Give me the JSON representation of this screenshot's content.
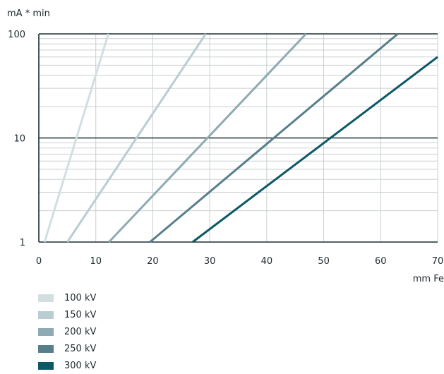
{
  "chart_data": {
    "type": "line",
    "title": "",
    "xlabel": "mm Fe",
    "ylabel": "mA * min",
    "xlim": [
      0,
      70
    ],
    "ylim": [
      1,
      100
    ],
    "y_scale": "log",
    "x_ticks": [
      0,
      10,
      20,
      30,
      40,
      50,
      60,
      70
    ],
    "y_ticks": [
      {
        "value": 1,
        "label": "1"
      },
      {
        "value": 10,
        "label": "10"
      },
      {
        "value": 100,
        "label": "100"
      }
    ],
    "grid": true,
    "legend_position": "bottom-left",
    "series": [
      {
        "name": "100 kV",
        "color": "#d3dee2",
        "x": [
          1,
          12.2
        ],
        "y": [
          1,
          100
        ]
      },
      {
        "name": "150 kV",
        "color": "#b9cdd3",
        "x": [
          5,
          29.3
        ],
        "y": [
          1,
          100
        ]
      },
      {
        "name": "200 kV",
        "color": "#8eaab2",
        "x": [
          12.3,
          46.9
        ],
        "y": [
          1,
          100
        ]
      },
      {
        "name": "250 kV",
        "color": "#567f8b",
        "x": [
          19.5,
          63
        ],
        "y": [
          1,
          100
        ]
      },
      {
        "name": "300 kV",
        "color": "#0c5864",
        "x": [
          27,
          70
        ],
        "y": [
          1,
          60
        ]
      }
    ]
  }
}
